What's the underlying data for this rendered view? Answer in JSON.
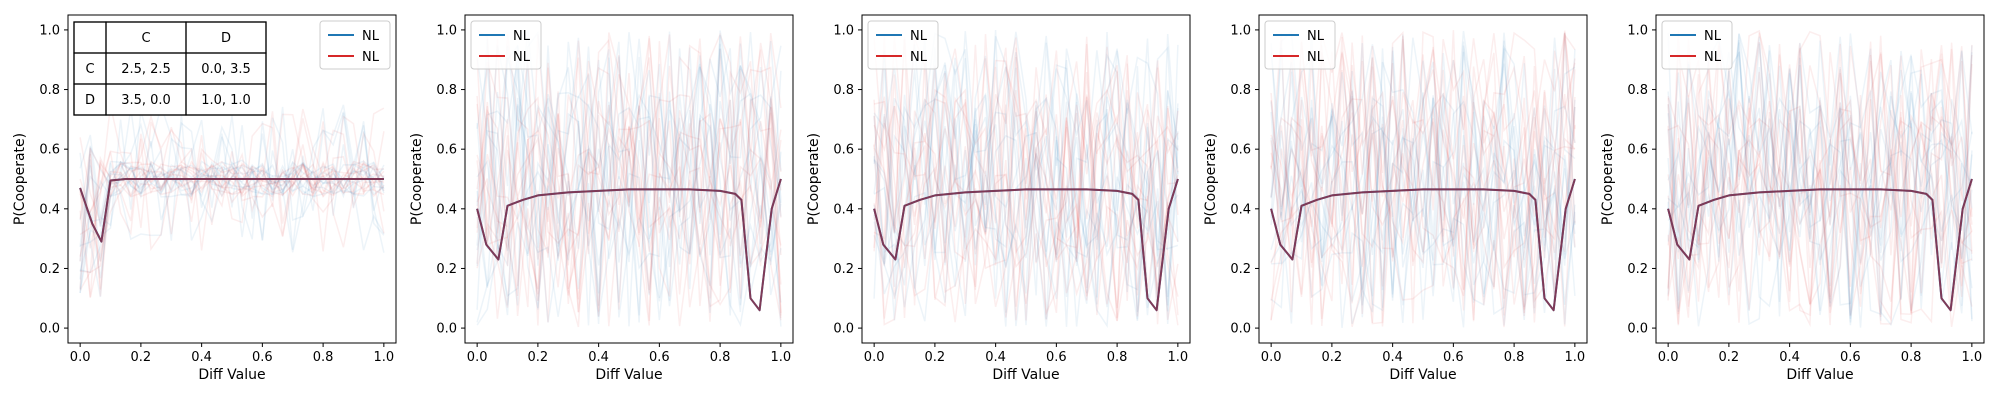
{
  "figure": {
    "layout": "1 row x 5 panels",
    "colors": {
      "series_a": "#1f77b4",
      "series_b": "#d62728",
      "overlap": "#8c2d45",
      "payoff_border": "#000000"
    }
  },
  "chart_data": [
    {
      "type": "line",
      "xlabel": "Diff Value",
      "ylabel": "P(Cooperate)",
      "xlim": [
        -0.04,
        1.04
      ],
      "ylim": [
        -0.05,
        1.05
      ],
      "xticks": [
        "0.0",
        "0.2",
        "0.4",
        "0.6",
        "0.8",
        "1.0"
      ],
      "yticks": [
        "0.0",
        "0.2",
        "0.4",
        "0.6",
        "0.8",
        "1.0"
      ],
      "legend": {
        "placement": "top-right",
        "entries": [
          {
            "label": "NL",
            "color": "#1f77b4"
          },
          {
            "label": "NL",
            "color": "#d62728"
          }
        ]
      },
      "grid": false,
      "background_traces": "many faint individual runs, values roughly 0.0-0.75",
      "payoff_table": {
        "placement": "top-left",
        "header": [
          "",
          "C",
          "D"
        ],
        "rows": [
          [
            "C",
            "2.5, 2.5",
            "0.0, 3.5"
          ],
          [
            "D",
            "3.5, 0.0",
            "1.0, 1.0"
          ]
        ]
      },
      "series": [
        {
          "name": "NL",
          "color": "#1f77b4",
          "x": [
            0.0,
            0.04,
            0.07,
            0.1,
            0.15,
            0.2,
            0.3,
            0.4,
            0.5,
            0.6,
            0.7,
            0.8,
            0.9,
            1.0
          ],
          "y": [
            0.47,
            0.35,
            0.29,
            0.495,
            0.5,
            0.5,
            0.5,
            0.5,
            0.5,
            0.5,
            0.5,
            0.5,
            0.5,
            0.5
          ]
        },
        {
          "name": "NL",
          "color": "#d62728",
          "x": [
            0.0,
            0.04,
            0.07,
            0.1,
            0.15,
            0.2,
            0.3,
            0.4,
            0.5,
            0.6,
            0.7,
            0.8,
            0.9,
            1.0
          ],
          "y": [
            0.47,
            0.35,
            0.29,
            0.495,
            0.5,
            0.5,
            0.5,
            0.5,
            0.5,
            0.5,
            0.5,
            0.5,
            0.5,
            0.5
          ]
        }
      ]
    },
    {
      "type": "line",
      "xlabel": "Diff Value",
      "ylabel": "P(Cooperate)",
      "xlim": [
        -0.04,
        1.04
      ],
      "ylim": [
        -0.05,
        1.05
      ],
      "xticks": [
        "0.0",
        "0.2",
        "0.4",
        "0.6",
        "0.8",
        "1.0"
      ],
      "yticks": [
        "0.0",
        "0.2",
        "0.4",
        "0.6",
        "0.8",
        "1.0"
      ],
      "legend": {
        "placement": "top-left",
        "entries": [
          {
            "label": "NL",
            "color": "#1f77b4"
          },
          {
            "label": "NL",
            "color": "#d62728"
          }
        ]
      },
      "grid": false,
      "background_traces": "many faint individual runs spanning 0.0-1.0",
      "series": [
        {
          "name": "NL",
          "color": "#1f77b4",
          "x": [
            0.0,
            0.03,
            0.07,
            0.1,
            0.15,
            0.2,
            0.3,
            0.4,
            0.5,
            0.6,
            0.7,
            0.8,
            0.85,
            0.87,
            0.9,
            0.93,
            0.97,
            1.0
          ],
          "y": [
            0.4,
            0.28,
            0.23,
            0.41,
            0.43,
            0.445,
            0.455,
            0.46,
            0.465,
            0.465,
            0.465,
            0.46,
            0.45,
            0.43,
            0.1,
            0.06,
            0.4,
            0.5
          ]
        },
        {
          "name": "NL",
          "color": "#d62728",
          "x": [
            0.0,
            0.03,
            0.07,
            0.1,
            0.15,
            0.2,
            0.3,
            0.4,
            0.5,
            0.6,
            0.7,
            0.8,
            0.85,
            0.87,
            0.9,
            0.93,
            0.97,
            1.0
          ],
          "y": [
            0.4,
            0.28,
            0.23,
            0.41,
            0.43,
            0.445,
            0.455,
            0.46,
            0.465,
            0.465,
            0.465,
            0.46,
            0.45,
            0.43,
            0.1,
            0.06,
            0.4,
            0.5
          ]
        }
      ]
    },
    {
      "type": "line",
      "xlabel": "Diff Value",
      "ylabel": "P(Cooperate)",
      "xlim": [
        -0.04,
        1.04
      ],
      "ylim": [
        -0.05,
        1.05
      ],
      "xticks": [
        "0.0",
        "0.2",
        "0.4",
        "0.6",
        "0.8",
        "1.0"
      ],
      "yticks": [
        "0.0",
        "0.2",
        "0.4",
        "0.6",
        "0.8",
        "1.0"
      ],
      "legend": {
        "placement": "top-left",
        "entries": [
          {
            "label": "NL",
            "color": "#1f77b4"
          },
          {
            "label": "NL",
            "color": "#d62728"
          }
        ]
      },
      "grid": false,
      "background_traces": "many faint individual runs spanning 0.0-1.0",
      "series": [
        {
          "name": "NL",
          "color": "#1f77b4",
          "x": [
            0.0,
            0.03,
            0.07,
            0.1,
            0.15,
            0.2,
            0.3,
            0.4,
            0.5,
            0.6,
            0.7,
            0.8,
            0.85,
            0.87,
            0.9,
            0.93,
            0.97,
            1.0
          ],
          "y": [
            0.4,
            0.28,
            0.23,
            0.41,
            0.43,
            0.445,
            0.455,
            0.46,
            0.465,
            0.465,
            0.465,
            0.46,
            0.45,
            0.43,
            0.1,
            0.06,
            0.4,
            0.5
          ]
        },
        {
          "name": "NL",
          "color": "#d62728",
          "x": [
            0.0,
            0.03,
            0.07,
            0.1,
            0.15,
            0.2,
            0.3,
            0.4,
            0.5,
            0.6,
            0.7,
            0.8,
            0.85,
            0.87,
            0.9,
            0.93,
            0.97,
            1.0
          ],
          "y": [
            0.4,
            0.28,
            0.23,
            0.41,
            0.43,
            0.445,
            0.455,
            0.46,
            0.465,
            0.465,
            0.465,
            0.46,
            0.45,
            0.43,
            0.1,
            0.06,
            0.4,
            0.5
          ]
        }
      ]
    },
    {
      "type": "line",
      "xlabel": "Diff Value",
      "ylabel": "P(Cooperate)",
      "xlim": [
        -0.04,
        1.04
      ],
      "ylim": [
        -0.05,
        1.05
      ],
      "xticks": [
        "0.0",
        "0.2",
        "0.4",
        "0.6",
        "0.8",
        "1.0"
      ],
      "yticks": [
        "0.0",
        "0.2",
        "0.4",
        "0.6",
        "0.8",
        "1.0"
      ],
      "legend": {
        "placement": "top-left",
        "entries": [
          {
            "label": "NL",
            "color": "#1f77b4"
          },
          {
            "label": "NL",
            "color": "#d62728"
          }
        ]
      },
      "grid": false,
      "background_traces": "many faint individual runs spanning 0.0-1.0",
      "series": [
        {
          "name": "NL",
          "color": "#1f77b4",
          "x": [
            0.0,
            0.03,
            0.07,
            0.1,
            0.15,
            0.2,
            0.3,
            0.4,
            0.5,
            0.6,
            0.7,
            0.8,
            0.85,
            0.87,
            0.9,
            0.93,
            0.97,
            1.0
          ],
          "y": [
            0.4,
            0.28,
            0.23,
            0.41,
            0.43,
            0.445,
            0.455,
            0.46,
            0.465,
            0.465,
            0.465,
            0.46,
            0.45,
            0.43,
            0.1,
            0.06,
            0.4,
            0.5
          ]
        },
        {
          "name": "NL",
          "color": "#d62728",
          "x": [
            0.0,
            0.03,
            0.07,
            0.1,
            0.15,
            0.2,
            0.3,
            0.4,
            0.5,
            0.6,
            0.7,
            0.8,
            0.85,
            0.87,
            0.9,
            0.93,
            0.97,
            1.0
          ],
          "y": [
            0.4,
            0.28,
            0.23,
            0.41,
            0.43,
            0.445,
            0.455,
            0.46,
            0.465,
            0.465,
            0.465,
            0.46,
            0.45,
            0.43,
            0.1,
            0.06,
            0.4,
            0.5
          ]
        }
      ]
    },
    {
      "type": "line",
      "xlabel": "Diff Value",
      "ylabel": "P(Cooperate)",
      "xlim": [
        -0.04,
        1.04
      ],
      "ylim": [
        -0.05,
        1.05
      ],
      "xticks": [
        "0.0",
        "0.2",
        "0.4",
        "0.6",
        "0.8",
        "1.0"
      ],
      "yticks": [
        "0.0",
        "0.2",
        "0.4",
        "0.6",
        "0.8",
        "1.0"
      ],
      "legend": {
        "placement": "top-left",
        "entries": [
          {
            "label": "NL",
            "color": "#1f77b4"
          },
          {
            "label": "NL",
            "color": "#d62728"
          }
        ]
      },
      "grid": false,
      "background_traces": "many faint individual runs spanning 0.0-1.0",
      "series": [
        {
          "name": "NL",
          "color": "#1f77b4",
          "x": [
            0.0,
            0.03,
            0.07,
            0.1,
            0.15,
            0.2,
            0.3,
            0.4,
            0.5,
            0.6,
            0.7,
            0.8,
            0.85,
            0.87,
            0.9,
            0.93,
            0.97,
            1.0
          ],
          "y": [
            0.4,
            0.28,
            0.23,
            0.41,
            0.43,
            0.445,
            0.455,
            0.46,
            0.465,
            0.465,
            0.465,
            0.46,
            0.45,
            0.43,
            0.1,
            0.06,
            0.4,
            0.5
          ]
        },
        {
          "name": "NL",
          "color": "#d62728",
          "x": [
            0.0,
            0.03,
            0.07,
            0.1,
            0.15,
            0.2,
            0.3,
            0.4,
            0.5,
            0.6,
            0.7,
            0.8,
            0.85,
            0.87,
            0.9,
            0.93,
            0.97,
            1.0
          ],
          "y": [
            0.4,
            0.28,
            0.23,
            0.41,
            0.43,
            0.445,
            0.455,
            0.46,
            0.465,
            0.465,
            0.465,
            0.46,
            0.45,
            0.43,
            0.1,
            0.06,
            0.4,
            0.5
          ]
        }
      ]
    }
  ]
}
